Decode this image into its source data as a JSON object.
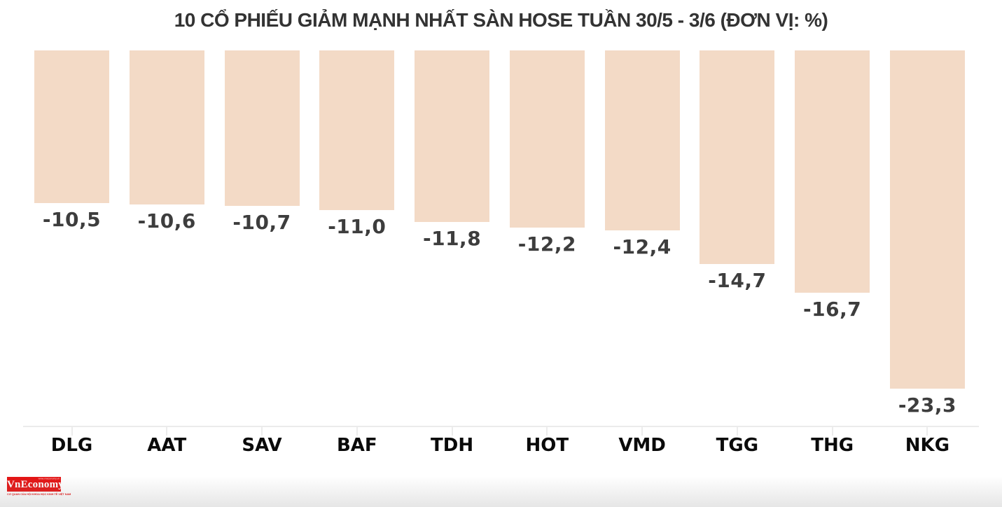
{
  "chart_data": {
    "type": "bar",
    "title": "10 CỔ PHIẾU GIẢM MẠNH NHẤT SÀN HOSE TUẦN 30/5 - 3/6 (ĐƠN VỊ: %)",
    "categories": [
      "DLG",
      "AAT",
      "SAV",
      "BAF",
      "TDH",
      "HOT",
      "VMD",
      "TGG",
      "THG",
      "NKG"
    ],
    "values": [
      -10.5,
      -10.6,
      -10.7,
      -11.0,
      -11.8,
      -12.2,
      -12.4,
      -14.7,
      -16.7,
      -23.3
    ],
    "value_labels": [
      "-10,5",
      "-10,6",
      "-10,7",
      "-11,0",
      "-11,8",
      "-12,2",
      "-12,4",
      "-14,7",
      "-16,7",
      "-23,3"
    ],
    "unit": "%",
    "ylim": [
      -26,
      0
    ],
    "orientation": "vertical-bars-hanging-from-zero-at-top",
    "grid": false,
    "legend": false,
    "bar_color": "#f3dac6",
    "value_label_color": "#3d3d3d",
    "category_label_color": "#0a0a0a",
    "axis_color": "#ebebeb",
    "title_color": "#333333"
  },
  "logo": {
    "wordmark": "VnEconomy",
    "smallprint": "www.vneconomy.vn",
    "tagline": "CƠ QUAN CỦA HỘI KHOA HỌC KINH TẾ VIỆT NAM",
    "brand_color": "#e41414"
  }
}
